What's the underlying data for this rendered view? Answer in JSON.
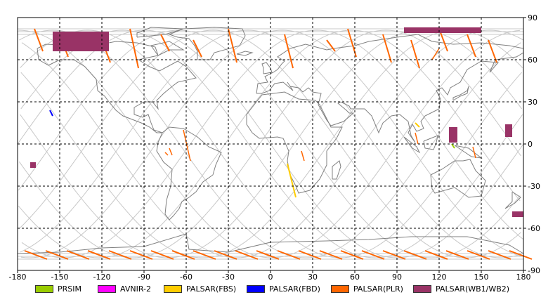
{
  "map": {
    "lon_ticks": [
      "-180",
      "-150",
      "-120",
      "-90",
      "-60",
      "-30",
      "0",
      "30",
      "60",
      "90",
      "120",
      "150",
      "180"
    ],
    "lat_ticks": [
      "90",
      "60",
      "30",
      "0",
      "-30",
      "-60",
      "-90"
    ],
    "lon_values": [
      -180,
      -150,
      -120,
      -90,
      -60,
      -30,
      0,
      30,
      60,
      90,
      120,
      150,
      180
    ],
    "lat_values": [
      90,
      60,
      30,
      0,
      -30,
      -60,
      -90
    ],
    "extent": {
      "lon": [
        -180,
        180
      ],
      "lat": [
        -90,
        90
      ]
    },
    "grid": "dashed",
    "colors": {
      "orbit_tracks": "#c8c8c8",
      "coastline": "#808080",
      "frame": "#000000"
    }
  },
  "legend": {
    "items": [
      {
        "label": "PRSIM",
        "color": "#99cc00"
      },
      {
        "label": "AVNIR-2",
        "color": "#ff00ff"
      },
      {
        "label": "PALSAR(FBS)",
        "color": "#ffcc00"
      },
      {
        "label": "PALSAR(FBD)",
        "color": "#0000ff"
      },
      {
        "label": "PALSAR(PLR)",
        "color": "#ff6600"
      },
      {
        "label": "PALSAR(WB1/WB2)",
        "color": "#993366"
      }
    ]
  },
  "observations": {
    "wb_regions": [
      {
        "lon": [
          -155,
          -115
        ],
        "lat": [
          66,
          80
        ]
      },
      {
        "lon": [
          95,
          150
        ],
        "lat": [
          79,
          83
        ]
      },
      {
        "lon": [
          127,
          133
        ],
        "lat": [
          1,
          12
        ]
      },
      {
        "lon": [
          167,
          172
        ],
        "lat": [
          5,
          14
        ]
      },
      {
        "lon": [
          -171,
          -167
        ],
        "lat": [
          -17,
          -13
        ]
      },
      {
        "lon": [
          172,
          180
        ],
        "lat": [
          -52,
          -48
        ]
      }
    ],
    "fbs_strips": [
      {
        "from": [
          12,
          -14
        ],
        "to": [
          18,
          -38
        ]
      },
      {
        "from": [
          103,
          15
        ],
        "to": [
          106,
          12
        ]
      }
    ],
    "fbd_marks": [
      {
        "from": [
          -157,
          24
        ],
        "to": [
          -155,
          20
        ]
      }
    ],
    "prsim_marks": [
      {
        "from": [
          129,
          0
        ],
        "to": [
          131,
          -3
        ]
      }
    ]
  }
}
